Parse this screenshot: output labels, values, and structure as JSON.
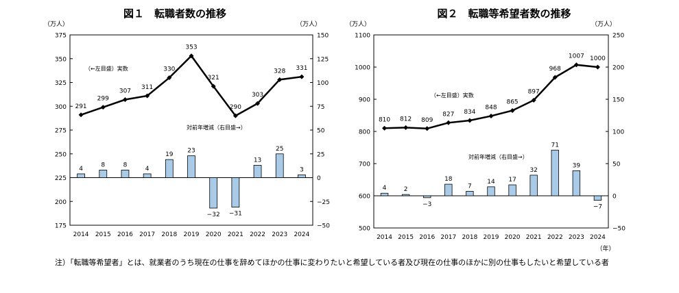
{
  "chart_data": [
    {
      "type": "line",
      "title": "図１　転職者数の推移",
      "left_unit": "（万人）",
      "right_unit": "（万人）",
      "x_unit": "",
      "categories": [
        "2014",
        "2015",
        "2016",
        "2017",
        "2018",
        "2019",
        "2020",
        "2021",
        "2022",
        "2023",
        "2024"
      ],
      "left_ylim": [
        175,
        375
      ],
      "left_ticks": [
        175,
        200,
        225,
        250,
        275,
        300,
        325,
        350,
        375
      ],
      "right_ylim": [
        -50,
        150
      ],
      "right_ticks": [
        -50,
        -25,
        0,
        25,
        50,
        75,
        100,
        125,
        150
      ],
      "right_tick_labels": [
        "−50",
        "−25",
        "0",
        "25",
        "50",
        "75",
        "100",
        "125",
        "150"
      ],
      "series": [
        {
          "name": "（←左目盛）実数",
          "type": "line",
          "axis": "left",
          "values": [
            291,
            299,
            307,
            311,
            330,
            353,
            321,
            290,
            303,
            328,
            331
          ]
        },
        {
          "name": "対前年増減（右目盛→）",
          "type": "bar",
          "axis": "right",
          "values": [
            4,
            8,
            8,
            4,
            19,
            23,
            -32,
            -31,
            13,
            25,
            3
          ],
          "labels": [
            "4",
            "8",
            "8",
            "4",
            "19",
            "23",
            "−32",
            "−31",
            "13",
            "25",
            "3"
          ]
        }
      ],
      "colors": {
        "bar": "#a9cbe8",
        "line": "#000000"
      }
    },
    {
      "type": "line",
      "title": "図２　転職等希望者数の推移",
      "left_unit": "（万人）",
      "right_unit": "（万人）",
      "x_unit": "（年）",
      "categories": [
        "2014",
        "2015",
        "2016",
        "2017",
        "2018",
        "2019",
        "2020",
        "2021",
        "2022",
        "2023",
        "2024"
      ],
      "left_ylim": [
        500,
        1100
      ],
      "left_ticks": [
        500,
        600,
        700,
        800,
        900,
        1000,
        1100
      ],
      "right_ylim": [
        -50,
        250
      ],
      "right_ticks": [
        -50,
        0,
        50,
        100,
        150,
        200,
        250
      ],
      "right_tick_labels": [
        "−50",
        "0",
        "50",
        "100",
        "150",
        "200",
        "250"
      ],
      "series": [
        {
          "name": "（←左目盛）実数",
          "type": "line",
          "axis": "left",
          "values": [
            810,
            812,
            809,
            827,
            834,
            848,
            865,
            897,
            968,
            1007,
            1000
          ]
        },
        {
          "name": "対前年増減（右目盛→）",
          "type": "bar",
          "axis": "right",
          "values": [
            4,
            2,
            -3,
            18,
            7,
            14,
            17,
            32,
            71,
            39,
            -7
          ],
          "labels": [
            "4",
            "2",
            "−3",
            "18",
            "7",
            "14",
            "17",
            "32",
            "71",
            "39",
            "−7"
          ]
        }
      ],
      "colors": {
        "bar": "#a9cbe8",
        "line": "#000000"
      }
    }
  ],
  "footnote": "注）「転職等希望者」とは、就業者のうち現在の仕事を辞めてほかの仕事に変わりたいと希望している者及び現在の仕事のほかに別の仕事もしたいと希望している者"
}
